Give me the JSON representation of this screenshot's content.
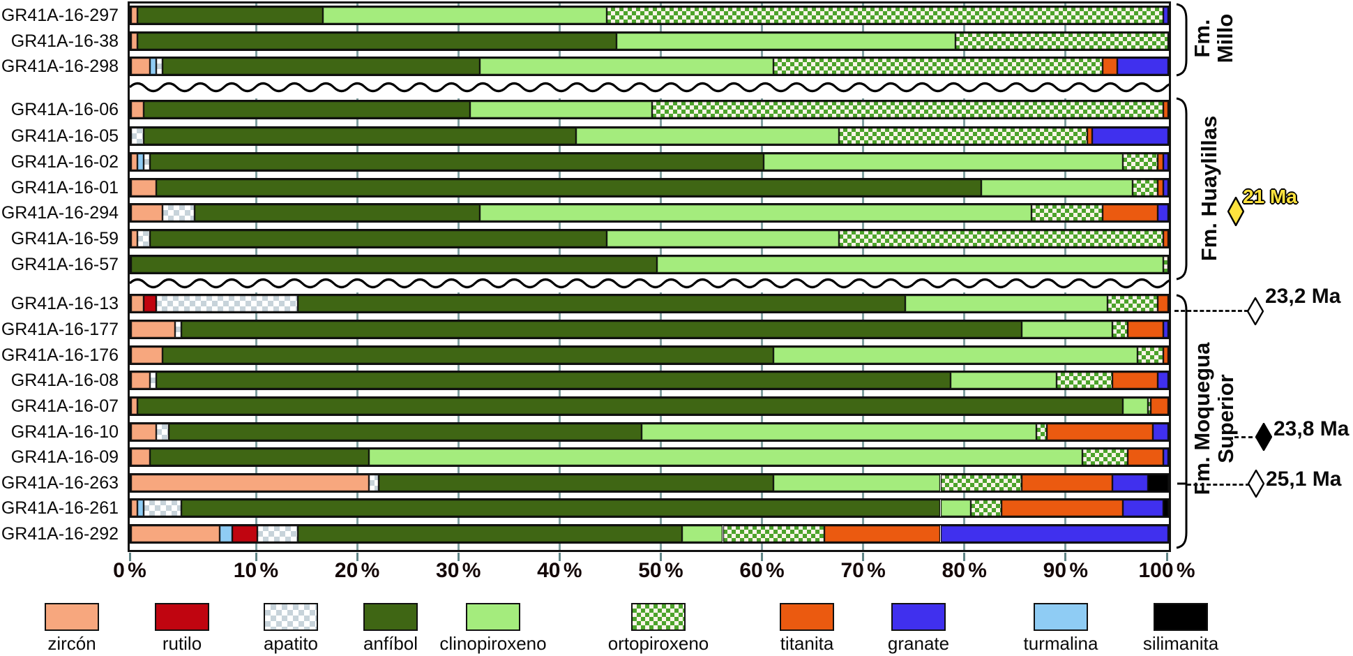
{
  "chart_data": {
    "type": "bar",
    "subtype": "horizontal-stacked-percentage",
    "title": "",
    "x_axis": {
      "tick_labels": [
        "0 %",
        "10 %",
        "20 %",
        "30 %",
        "40 %",
        "50 %",
        "60 %",
        "70 %",
        "80 %",
        "90 %",
        "100 %"
      ],
      "range": [
        0,
        100
      ],
      "grid": true
    },
    "minerals": [
      "zircon",
      "rutilo",
      "apatito",
      "anfibol",
      "clinopiroxeno",
      "ortopiroxeno",
      "titanita",
      "granate",
      "turmalina",
      "silimanita"
    ],
    "groups": [
      {
        "label": "Fm. Millo",
        "lines": [
          "Fm.",
          "Millo"
        ]
      },
      {
        "label": "Fm. Huaylillas",
        "lines": [
          "Fm. Huaylillas"
        ]
      },
      {
        "label": "Fm. Moquegua Superior",
        "lines": [
          "Fm. Moquegua",
          "Superior"
        ]
      }
    ],
    "samples": [
      {
        "id": "GR41A-16-297",
        "group": 0,
        "segments": [
          [
            "zircon",
            0.5
          ],
          [
            "anfibol",
            16
          ],
          [
            "clinopiroxeno",
            28
          ],
          [
            "ortopiroxeno",
            55
          ],
          [
            "granate",
            0.5
          ]
        ]
      },
      {
        "id": "GR41A-16-38",
        "group": 0,
        "segments": [
          [
            "zircon",
            0.5
          ],
          [
            "anfibol",
            45
          ],
          [
            "clinopiroxeno",
            33.5
          ],
          [
            "ortopiroxeno",
            21
          ]
        ]
      },
      {
        "id": "GR41A-16-298",
        "group": 0,
        "segments": [
          [
            "zircon",
            1.5
          ],
          [
            "turmalina",
            0.5
          ],
          [
            "apatito",
            0.5
          ],
          [
            "anfibol",
            29.5
          ],
          [
            "clinopiroxeno",
            29
          ],
          [
            "ortopiroxeno",
            32.5
          ],
          [
            "titanita",
            1.5
          ],
          [
            "granate",
            5
          ]
        ]
      },
      {
        "id": "GR41A-16-06",
        "group": 1,
        "segments": [
          [
            "zircon",
            1
          ],
          [
            "anfibol",
            30
          ],
          [
            "clinopiroxeno",
            18
          ],
          [
            "ortopiroxeno",
            50.5
          ],
          [
            "titanita",
            0.5
          ]
        ]
      },
      {
        "id": "GR41A-16-05",
        "group": 1,
        "segments": [
          [
            "apatito",
            1
          ],
          [
            "anfibol",
            40.5
          ],
          [
            "clinopiroxeno",
            26
          ],
          [
            "ortopiroxeno",
            24.5
          ],
          [
            "titanita",
            0.5
          ],
          [
            "granate",
            7.5
          ]
        ]
      },
      {
        "id": "GR41A-16-02",
        "group": 1,
        "segments": [
          [
            "zircon",
            0.5
          ],
          [
            "turmalina",
            0.5
          ],
          [
            "apatito",
            0.5
          ],
          [
            "anfibol",
            58.5
          ],
          [
            "clinopiroxeno",
            35.5
          ],
          [
            "ortopiroxeno",
            3.5
          ],
          [
            "titanita",
            0.5
          ],
          [
            "granate",
            0.5
          ]
        ]
      },
      {
        "id": "GR41A-16-01",
        "group": 1,
        "segments": [
          [
            "zircon",
            2
          ],
          [
            "anfibol",
            79.5
          ],
          [
            "clinopiroxeno",
            15
          ],
          [
            "ortopiroxeno",
            2.5
          ],
          [
            "titanita",
            0.5
          ],
          [
            "granate",
            0.5
          ]
        ]
      },
      {
        "id": "GR41A-16-294",
        "group": 1,
        "segments": [
          [
            "zircon",
            2.5
          ],
          [
            "apatito",
            2.5
          ],
          [
            "anfibol",
            27
          ],
          [
            "clinopiroxeno",
            54.5
          ],
          [
            "ortopiroxeno",
            7
          ],
          [
            "titanita",
            5.5
          ],
          [
            "granate",
            1
          ]
        ]
      },
      {
        "id": "GR41A-16-59",
        "group": 1,
        "segments": [
          [
            "zircon",
            0.5
          ],
          [
            "apatito",
            1
          ],
          [
            "anfibol",
            43
          ],
          [
            "clinopiroxeno",
            23
          ],
          [
            "ortopiroxeno",
            32
          ],
          [
            "titanita",
            0.5
          ]
        ]
      },
      {
        "id": "GR41A-16-57",
        "group": 1,
        "segments": [
          [
            "anfibol",
            49.5
          ],
          [
            "clinopiroxeno",
            50
          ],
          [
            "ortopiroxeno",
            0.5
          ]
        ]
      },
      {
        "id": "GR41A-16-13",
        "group": 2,
        "segments": [
          [
            "zircon",
            1
          ],
          [
            "rutilo",
            1
          ],
          [
            "apatito",
            12
          ],
          [
            "anfibol",
            60
          ],
          [
            "clinopiroxeno",
            20
          ],
          [
            "ortopiroxeno",
            5
          ],
          [
            "titanita",
            1
          ]
        ]
      },
      {
        "id": "GR41A-16-177",
        "group": 2,
        "segments": [
          [
            "zircon",
            3.5
          ],
          [
            "apatito",
            0.5
          ],
          [
            "anfibol",
            81.5
          ],
          [
            "clinopiroxeno",
            9
          ],
          [
            "ortopiroxeno",
            1.5
          ],
          [
            "titanita",
            3.5
          ],
          [
            "granate",
            0.5
          ]
        ]
      },
      {
        "id": "GR41A-16-176",
        "group": 2,
        "segments": [
          [
            "zircon",
            2.5
          ],
          [
            "anfibol",
            58.5
          ],
          [
            "clinopiroxeno",
            36
          ],
          [
            "ortopiroxeno",
            2.5
          ],
          [
            "titanita",
            0.5
          ]
        ]
      },
      {
        "id": "GR41A-16-08",
        "group": 2,
        "segments": [
          [
            "zircon",
            1.5
          ],
          [
            "apatito",
            0.5
          ],
          [
            "anfibol",
            76.5
          ],
          [
            "clinopiroxeno",
            10.5
          ],
          [
            "ortopiroxeno",
            5.5
          ],
          [
            "titanita",
            4.5
          ],
          [
            "granate",
            1
          ]
        ]
      },
      {
        "id": "GR41A-16-07",
        "group": 2,
        "segments": [
          [
            "zircon",
            0.5
          ],
          [
            "anfibol",
            95
          ],
          [
            "clinopiroxeno",
            2.5
          ],
          [
            "ortopiroxeno",
            0.3
          ],
          [
            "titanita",
            1.7
          ]
        ]
      },
      {
        "id": "GR41A-16-10",
        "group": 2,
        "segments": [
          [
            "zircon",
            2
          ],
          [
            "apatito",
            1
          ],
          [
            "anfibol",
            45
          ],
          [
            "clinopiroxeno",
            39
          ],
          [
            "ortopiroxeno",
            1
          ],
          [
            "titanita",
            10.5
          ],
          [
            "granate",
            1.5
          ]
        ]
      },
      {
        "id": "GR41A-16-09",
        "group": 2,
        "segments": [
          [
            "zircon",
            1.5
          ],
          [
            "anfibol",
            19.5
          ],
          [
            "clinopiroxeno",
            70.5
          ],
          [
            "ortopiroxeno",
            4.5
          ],
          [
            "titanita",
            3.5
          ],
          [
            "granate",
            0.5
          ]
        ]
      },
      {
        "id": "GR41A-16-263",
        "group": 2,
        "segments": [
          [
            "zircon",
            21
          ],
          [
            "apatito",
            1
          ],
          [
            "anfibol",
            39
          ],
          [
            "clinopiroxeno",
            16.5
          ],
          [
            "ortopiroxeno",
            8
          ],
          [
            "titanita",
            9
          ],
          [
            "granate",
            3.5
          ],
          [
            "silimanita",
            2
          ]
        ]
      },
      {
        "id": "GR41A-16-261",
        "group": 2,
        "segments": [
          [
            "zircon",
            0.5
          ],
          [
            "turmalina",
            0.5
          ],
          [
            "apatito",
            3
          ],
          [
            "anfibol",
            73.5
          ],
          [
            "clinopiroxeno",
            3
          ],
          [
            "ortopiroxeno",
            3
          ],
          [
            "titanita",
            12
          ],
          [
            "granate",
            4
          ],
          [
            "silimanita",
            0.5
          ]
        ]
      },
      {
        "id": "GR41A-16-292",
        "group": 2,
        "segments": [
          [
            "zircon",
            7
          ],
          [
            "turmalina",
            1
          ],
          [
            "rutilo",
            2
          ],
          [
            "apatito",
            4
          ],
          [
            "anfibol",
            38
          ],
          [
            "clinopiroxeno",
            4
          ],
          [
            "ortopiroxeno",
            10
          ],
          [
            "titanita",
            11.5
          ],
          [
            "granate",
            22.5
          ]
        ]
      }
    ],
    "age_markers": [
      {
        "label": "21 Ma",
        "style": "yellow",
        "sample": "GR41A-16-294"
      },
      {
        "label": "23,2 Ma",
        "style": "open",
        "sample": "GR41A-16-13"
      },
      {
        "label": "23,8 Ma",
        "style": "filled",
        "sample": "GR41A-16-10"
      },
      {
        "label": "25,1 Ma",
        "style": "open",
        "sample": "GR41A-16-263"
      }
    ],
    "legend_position": "bottom"
  },
  "legend": {
    "items": [
      {
        "mineral": "zircon",
        "label": "zircón"
      },
      {
        "mineral": "rutilo",
        "label": "rutilo"
      },
      {
        "mineral": "apatito",
        "label": "apatito"
      },
      {
        "mineral": "anfibol",
        "label": "anfíbol"
      },
      {
        "mineral": "clinopiroxeno",
        "label": "clinopiroxeno"
      },
      {
        "mineral": "ortopiroxeno",
        "label": "ortopiroxeno"
      },
      {
        "mineral": "titanita",
        "label": "titanita"
      },
      {
        "mineral": "granate",
        "label": "granate"
      },
      {
        "mineral": "turmalina",
        "label": "turmalina"
      },
      {
        "mineral": "silimanita",
        "label": "silimanita"
      }
    ]
  },
  "colors": {
    "zircon": "#F7A77E",
    "rutilo": "#C00510",
    "apatito_check": "#C7D3DA",
    "anfibol": "#3F6614",
    "clinopiroxeno": "#A4EC7D",
    "ortopiroxeno_check": "#4CA32B",
    "titanita": "#EB5A10",
    "granate": "#4030EE",
    "turmalina": "#8FCCF4",
    "silimanita": "#000000",
    "gridline": "#7F9FA0",
    "tick": "#5F8486",
    "age_yellow": "#FFE33E",
    "frame": "#111111"
  }
}
